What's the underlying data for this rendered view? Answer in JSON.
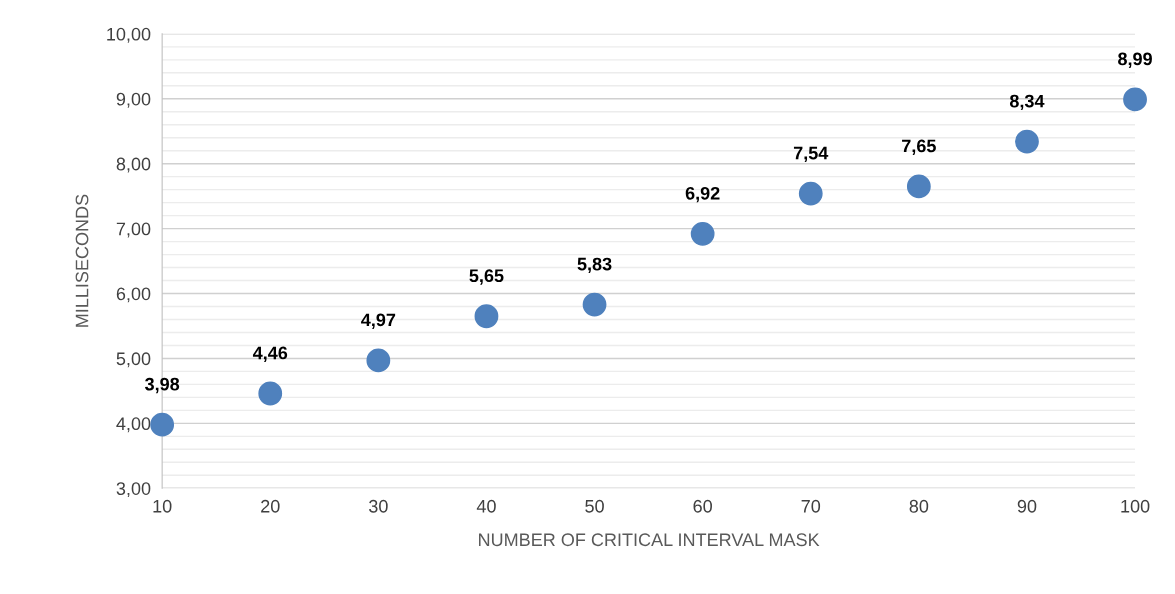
{
  "chart_data": {
    "type": "scatter",
    "xlabel": "NUMBER OF CRITICAL INTERVAL MASK",
    "ylabel": "MILLISECONDS",
    "x": [
      10,
      20,
      30,
      40,
      50,
      60,
      70,
      80,
      90,
      100
    ],
    "values": [
      3.98,
      4.46,
      4.97,
      5.65,
      5.83,
      6.92,
      7.54,
      7.65,
      8.34,
      8.99
    ],
    "value_labels": [
      "3,98",
      "4,46",
      "4,97",
      "5,65",
      "5,83",
      "6,92",
      "7,54",
      "7,65",
      "8,34",
      "8,99"
    ],
    "color": "#4f81bd",
    "marker": "circle",
    "grid": "y",
    "xlim": [
      10,
      100
    ],
    "xticks": [
      10,
      20,
      30,
      40,
      50,
      60,
      70,
      80,
      90,
      100
    ],
    "ylim": [
      3,
      10
    ],
    "yticks": [
      {
        "value": 3,
        "label": "3,00"
      },
      {
        "value": 3.2,
        "label": null
      },
      {
        "value": 3.4,
        "label": null
      },
      {
        "value": 3.6,
        "label": null
      },
      {
        "value": 3.8,
        "label": null
      },
      {
        "value": 4,
        "label": "4,00"
      },
      {
        "value": 4.2,
        "label": null
      },
      {
        "value": 4.4,
        "label": null
      },
      {
        "value": 4.6,
        "label": null
      },
      {
        "value": 4.8,
        "label": null
      },
      {
        "value": 5,
        "label": "5,00"
      },
      {
        "value": 5.2,
        "label": null
      },
      {
        "value": 5.4,
        "label": null
      },
      {
        "value": 5.6,
        "label": null
      },
      {
        "value": 5.8,
        "label": null
      },
      {
        "value": 6,
        "label": "6,00"
      },
      {
        "value": 6.2,
        "label": null
      },
      {
        "value": 6.4,
        "label": null
      },
      {
        "value": 6.6,
        "label": null
      },
      {
        "value": 6.8,
        "label": null
      },
      {
        "value": 7,
        "label": "7,00"
      },
      {
        "value": 7.2,
        "label": null
      },
      {
        "value": 7.4,
        "label": null
      },
      {
        "value": 7.6,
        "label": null
      },
      {
        "value": 7.8,
        "label": null
      },
      {
        "value": 8,
        "label": "8,00"
      },
      {
        "value": 8.2,
        "label": null
      },
      {
        "value": 8.4,
        "label": null
      },
      {
        "value": 8.6,
        "label": null
      },
      {
        "value": 8.8,
        "label": null
      },
      {
        "value": 9,
        "label": "9,00"
      },
      {
        "value": 9.2,
        "label": null
      },
      {
        "value": 9.4,
        "label": null
      },
      {
        "value": 9.6,
        "label": null
      },
      {
        "value": 9.8,
        "label": null
      },
      {
        "value": 10,
        "label": "10,00"
      }
    ]
  }
}
